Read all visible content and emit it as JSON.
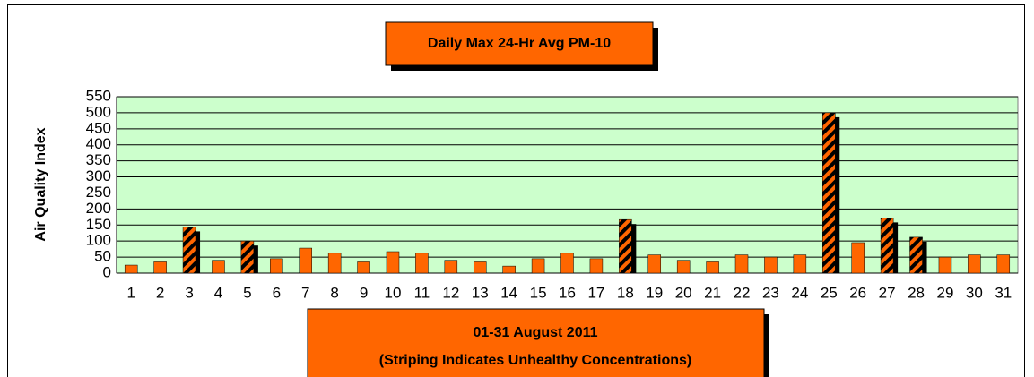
{
  "chart_data": {
    "type": "bar",
    "title": "Daily Max 24-Hr Avg PM-10",
    "y_label": "Air Quality Index",
    "x_label": [
      "01-31 August 2011",
      "(Striping Indicates Unhealthy Concentrations)"
    ],
    "categories": [
      1,
      2,
      3,
      4,
      5,
      6,
      7,
      8,
      9,
      10,
      11,
      12,
      13,
      14,
      15,
      16,
      17,
      18,
      19,
      20,
      21,
      22,
      23,
      24,
      25,
      26,
      27,
      28,
      29,
      30,
      31
    ],
    "values": [
      25,
      35,
      144,
      40,
      100,
      45,
      78,
      62,
      35,
      67,
      62,
      40,
      35,
      22,
      45,
      62,
      45,
      167,
      57,
      40,
      35,
      57,
      50,
      57,
      500,
      95,
      172,
      112,
      50,
      57,
      57
    ],
    "striped": [
      false,
      false,
      true,
      false,
      true,
      false,
      false,
      false,
      false,
      false,
      false,
      false,
      false,
      false,
      false,
      false,
      false,
      true,
      false,
      false,
      false,
      false,
      false,
      false,
      true,
      false,
      true,
      true,
      false,
      false,
      false
    ],
    "color": "#ff6600",
    "stripe_color": "#000000",
    "plot_background": "#ccffcc",
    "ylim": [
      0,
      550
    ],
    "yticks": [
      0,
      50,
      100,
      150,
      200,
      250,
      300,
      350,
      400,
      450,
      500,
      550
    ],
    "grid": true
  }
}
